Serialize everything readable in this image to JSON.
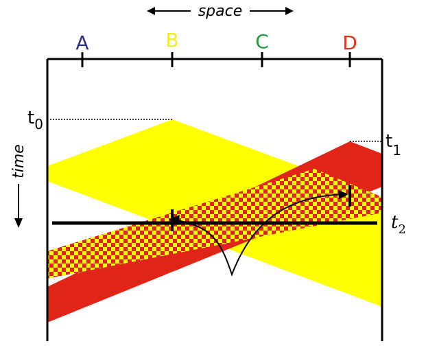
{
  "space_label": "space",
  "time_label": "time",
  "points": [
    {
      "name": "A",
      "color": "#2b2f86"
    },
    {
      "name": "B",
      "color": "#f2ea2e"
    },
    {
      "name": "C",
      "color": "#1f9a3a"
    },
    {
      "name": "D",
      "color": "#e2321b"
    }
  ],
  "times": {
    "t0": {
      "base": "t",
      "sub": "0"
    },
    "t1": {
      "base": "t",
      "sub": "1"
    },
    "t2": {
      "base": "t",
      "sub": "2"
    }
  },
  "colors": {
    "yellow": "#ffff00",
    "red": "#e02417",
    "line": "#000000"
  }
}
